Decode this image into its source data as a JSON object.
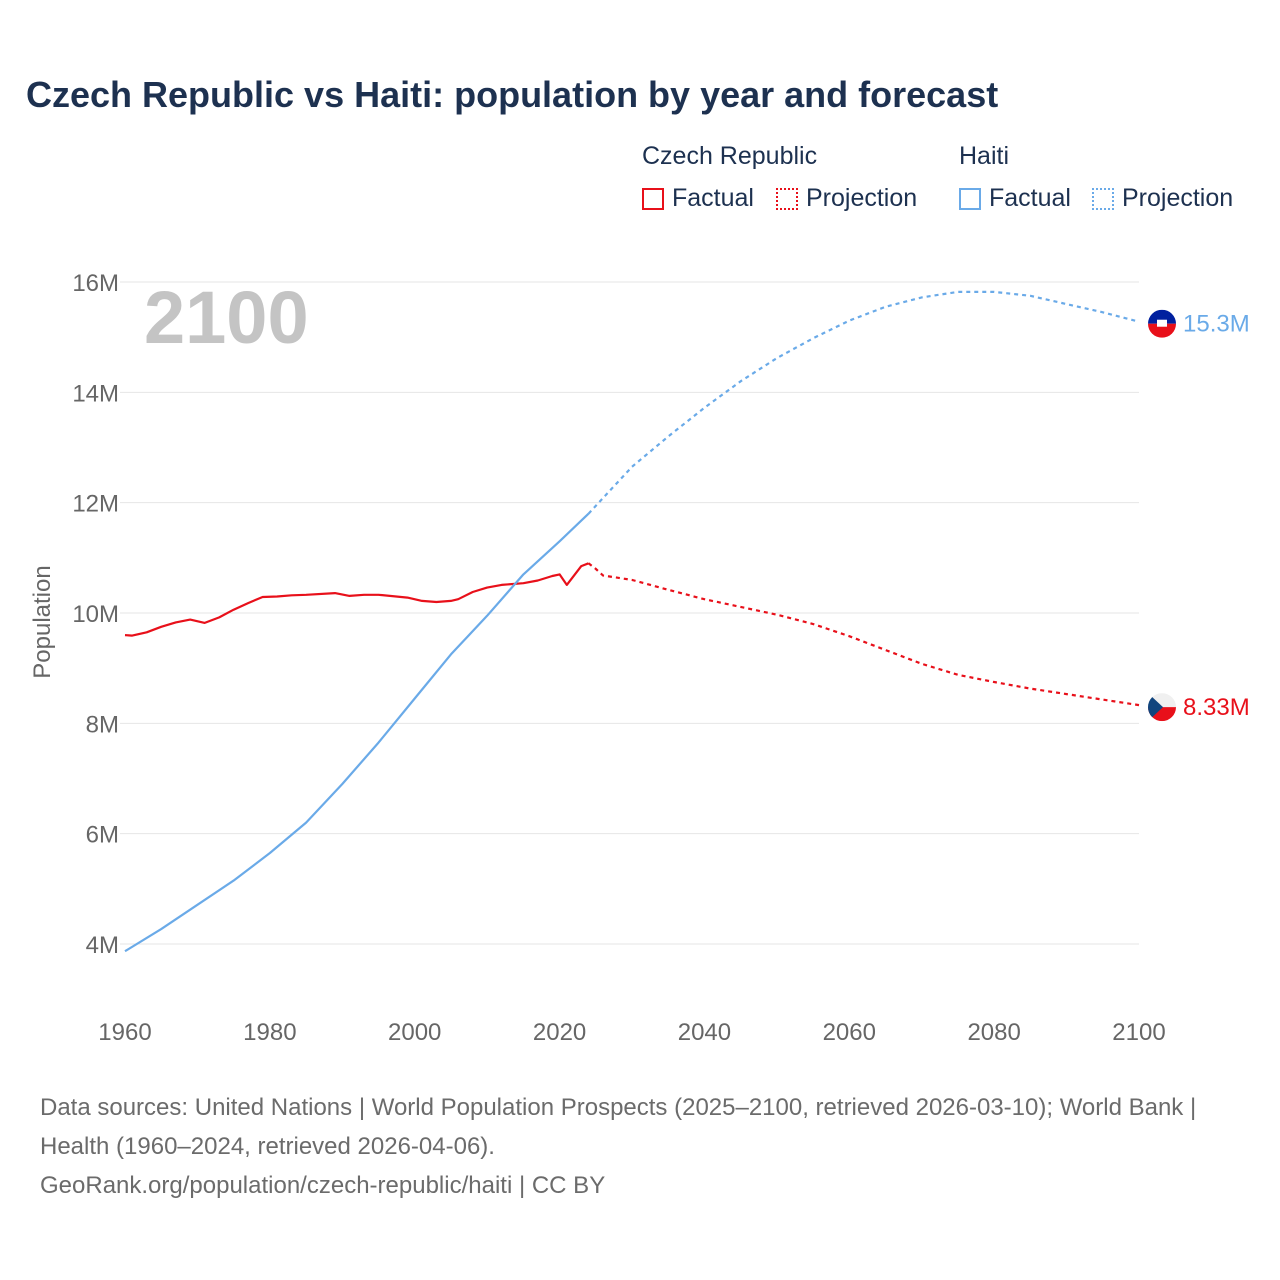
{
  "title": "Czech Republic vs Haiti: population by year and forecast",
  "legend": {
    "groups": [
      {
        "name": "Czech Republic",
        "color": "#e8101a",
        "factual": "Factual",
        "projection": "Projection"
      },
      {
        "name": "Haiti",
        "color": "#6aaae8",
        "factual": "Factual",
        "projection": "Projection"
      }
    ]
  },
  "source": {
    "line1": "Data sources: United Nations | World Population Prospects (2025–2100, retrieved 2026-03-10); World Bank | Health (1960–2024, retrieved 2026-04-06).",
    "line2": "GeoRank.org/population/czech-republic/haiti | CC BY"
  },
  "chart_data": {
    "type": "line",
    "title": "Czech Republic vs Haiti: population by year and forecast",
    "year_label": "2100",
    "ylabel": "Population",
    "xlabel": "",
    "xlim": [
      1960,
      2100
    ],
    "ylim": [
      4,
      16
    ],
    "y_unit": "M",
    "x_ticks": [
      1960,
      1980,
      2000,
      2020,
      2040,
      2060,
      2080,
      2100
    ],
    "y_ticks": [
      4,
      6,
      8,
      10,
      12,
      14,
      16
    ],
    "y_tick_labels": [
      "4M",
      "6M",
      "8M",
      "10M",
      "12M",
      "14M",
      "16M"
    ],
    "grid": true,
    "legend_position": "top-right",
    "series": [
      {
        "name": "Czech Republic",
        "color": "#e8101a",
        "end_label": "8.33M",
        "factual": {
          "x": [
            1960,
            1961,
            1963,
            1965,
            1967,
            1969,
            1971,
            1973,
            1975,
            1977,
            1979,
            1981,
            1983,
            1985,
            1989,
            1991,
            1993,
            1995,
            1999,
            2001,
            2003,
            2005,
            2006,
            2008,
            2010,
            2012,
            2015,
            2017,
            2019,
            2020,
            2021,
            2023,
            2024
          ],
          "y": [
            9.6,
            9.59,
            9.65,
            9.75,
            9.83,
            9.88,
            9.82,
            9.92,
            10.06,
            10.18,
            10.29,
            10.3,
            10.32,
            10.33,
            10.36,
            10.31,
            10.33,
            10.33,
            10.28,
            10.22,
            10.2,
            10.22,
            10.25,
            10.38,
            10.46,
            10.51,
            10.54,
            10.59,
            10.67,
            10.7,
            10.51,
            10.85,
            10.9
          ]
        },
        "projection": {
          "x": [
            2024,
            2025,
            2026,
            2030,
            2035,
            2040,
            2045,
            2050,
            2055,
            2060,
            2065,
            2070,
            2075,
            2080,
            2085,
            2090,
            2095,
            2100
          ],
          "y": [
            10.9,
            10.8,
            10.68,
            10.6,
            10.42,
            10.25,
            10.11,
            9.97,
            9.8,
            9.58,
            9.33,
            9.08,
            8.88,
            8.75,
            8.63,
            8.53,
            8.43,
            8.33
          ]
        }
      },
      {
        "name": "Haiti",
        "color": "#6aaae8",
        "end_label": "15.3M",
        "factual": {
          "x": [
            1960,
            1965,
            1970,
            1975,
            1980,
            1985,
            1990,
            1995,
            2000,
            2005,
            2010,
            2015,
            2020,
            2024
          ],
          "y": [
            3.87,
            4.27,
            4.71,
            5.15,
            5.65,
            6.2,
            6.9,
            7.65,
            8.45,
            9.25,
            9.95,
            10.7,
            11.3,
            11.8
          ]
        },
        "projection": {
          "x": [
            2024,
            2030,
            2035,
            2040,
            2045,
            2050,
            2055,
            2060,
            2065,
            2070,
            2075,
            2080,
            2085,
            2090,
            2095,
            2100
          ],
          "y": [
            11.8,
            12.65,
            13.2,
            13.72,
            14.2,
            14.62,
            14.98,
            15.3,
            15.55,
            15.72,
            15.82,
            15.82,
            15.75,
            15.6,
            15.45,
            15.28
          ]
        }
      }
    ]
  }
}
